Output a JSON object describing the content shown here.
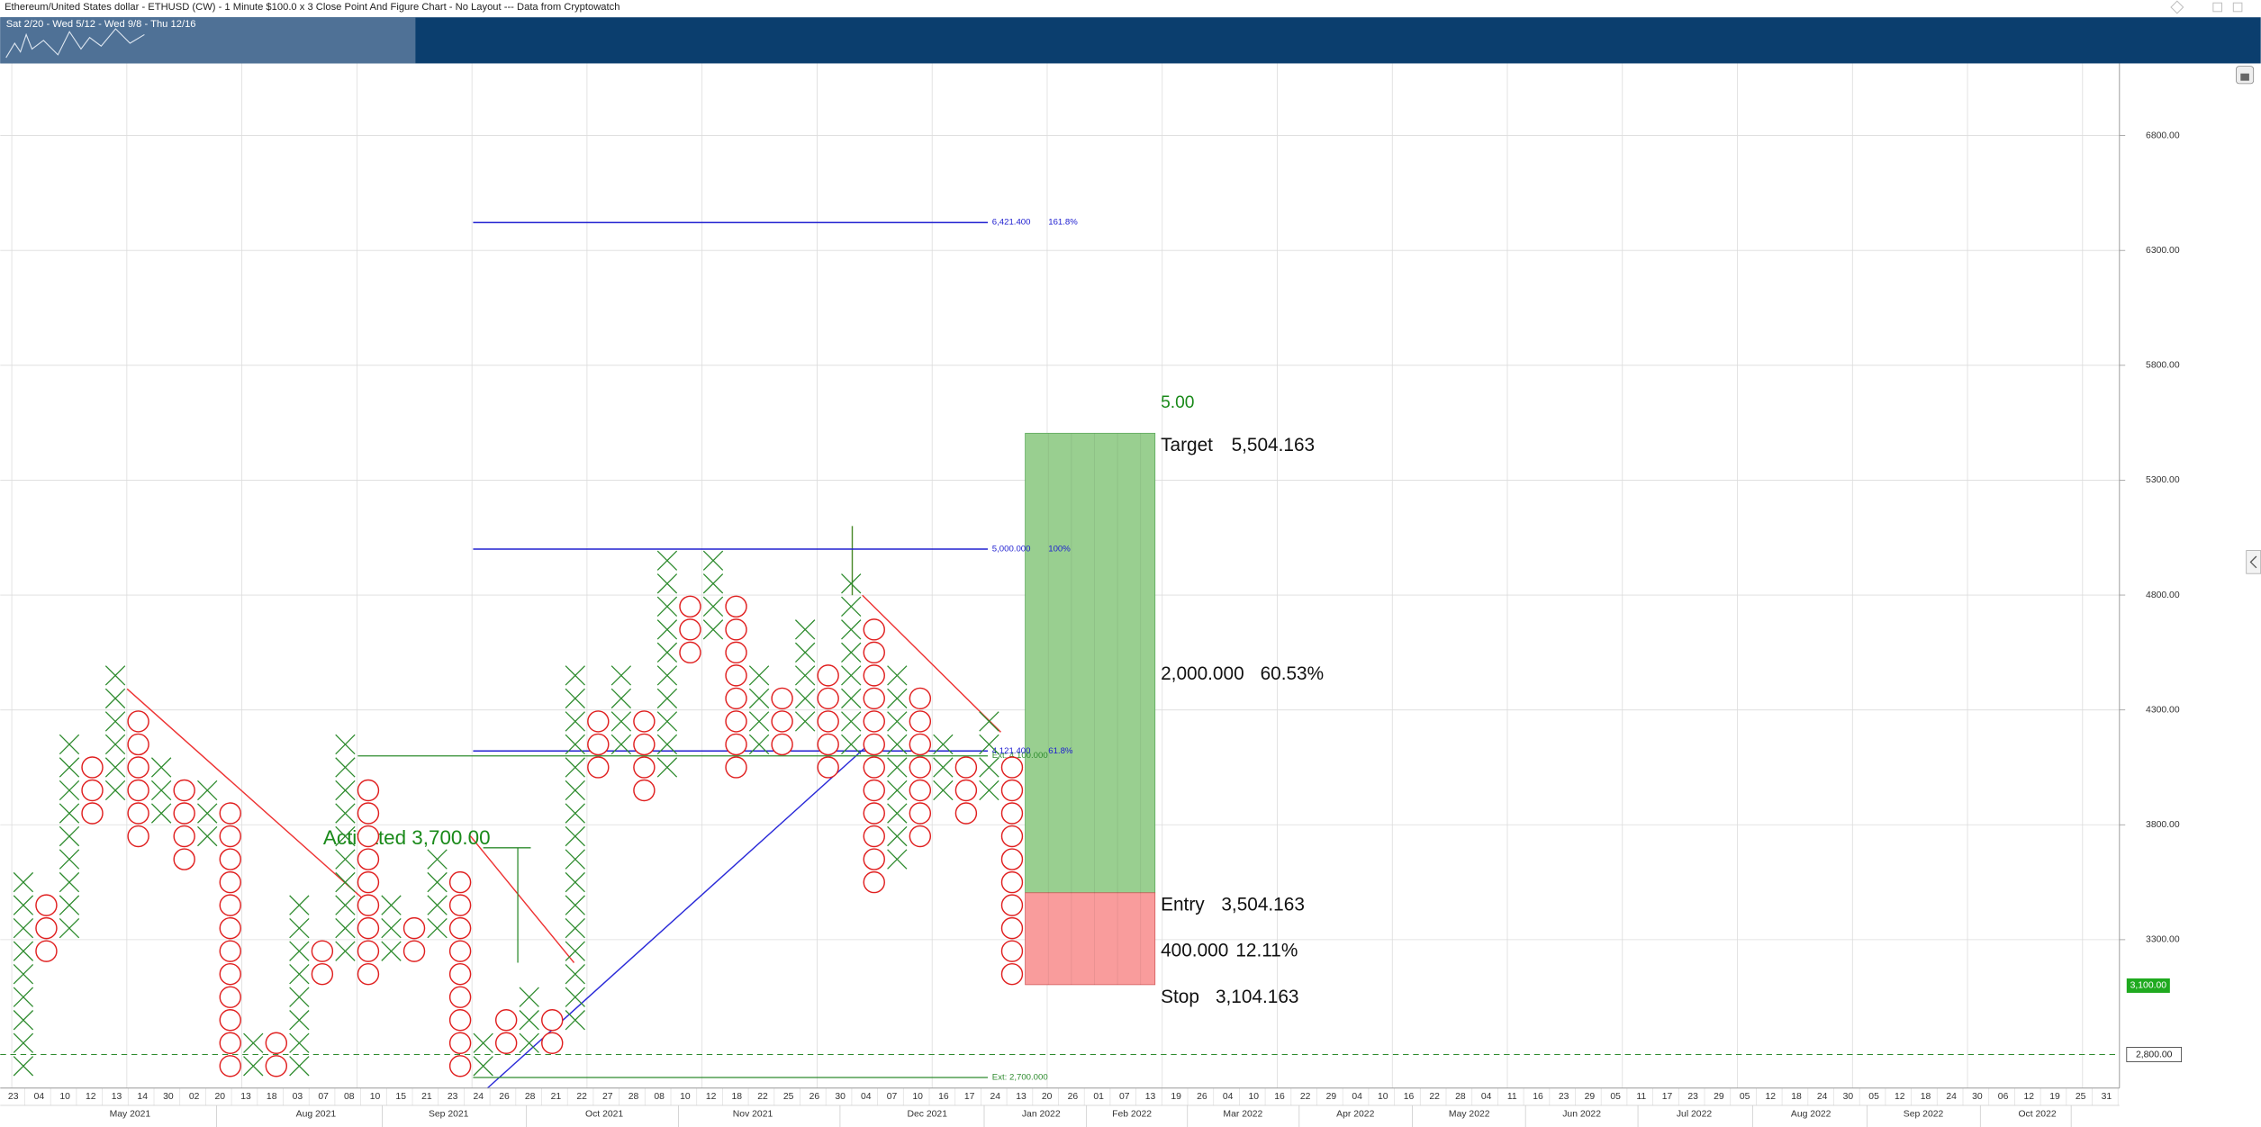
{
  "header": {
    "title": "Ethereum/United States dollar - ETHUSD (CW) - 1 Minute $100.0 x 3 Close Point And Figure Chart - No Layout --- Data from Cryptowatch",
    "overview_dates": "Sat 2/20 - Wed 5/12 - Wed 9/8 - Thu 12/16"
  },
  "chart_data": {
    "type": "point-and-figure",
    "box_size": 100,
    "x_color": "#2e8b2e",
    "o_color": "#e02020",
    "columns": [
      {
        "type": "X",
        "low": 2600,
        "high": 3500
      },
      {
        "type": "O",
        "low": 3200,
        "high": 3400
      },
      {
        "type": "X",
        "low": 3300,
        "high": 4100
      },
      {
        "type": "O",
        "low": 3800,
        "high": 4000
      },
      {
        "type": "X",
        "low": 3900,
        "high": 4400
      },
      {
        "type": "O",
        "low": 3700,
        "high": 4200
      },
      {
        "type": "X",
        "low": 3800,
        "high": 4000
      },
      {
        "type": "O",
        "low": 3600,
        "high": 3900
      },
      {
        "type": "X",
        "low": 3700,
        "high": 3900
      },
      {
        "type": "O",
        "low": 2700,
        "high": 3800
      },
      {
        "type": "X",
        "low": 2700,
        "high": 2800
      },
      {
        "type": "O",
        "low": 2700,
        "high": 2800
      },
      {
        "type": "X",
        "low": 2700,
        "high": 3400
      },
      {
        "type": "O",
        "low": 3100,
        "high": 3200
      },
      {
        "type": "X",
        "low": 3200,
        "high": 4100
      },
      {
        "type": "O",
        "low": 3100,
        "high": 3900
      },
      {
        "type": "X",
        "low": 3200,
        "high": 3400
      },
      {
        "type": "O",
        "low": 3200,
        "high": 3300
      },
      {
        "type": "X",
        "low": 3300,
        "high": 3600
      },
      {
        "type": "O",
        "low": 2700,
        "high": 3500
      },
      {
        "type": "X",
        "low": 2700,
        "high": 2800
      },
      {
        "type": "O",
        "low": 2800,
        "high": 2900
      },
      {
        "type": "X",
        "low": 2800,
        "high": 3000
      },
      {
        "type": "O",
        "low": 2800,
        "high": 2900
      },
      {
        "type": "X",
        "low": 2900,
        "high": 4400
      },
      {
        "type": "O",
        "low": 4000,
        "high": 4200
      },
      {
        "type": "X",
        "low": 4100,
        "high": 4400
      },
      {
        "type": "O",
        "low": 3900,
        "high": 4200
      },
      {
        "type": "X",
        "low": 4000,
        "high": 4900
      },
      {
        "type": "O",
        "low": 4500,
        "high": 4700
      },
      {
        "type": "X",
        "low": 4600,
        "high": 4900
      },
      {
        "type": "O",
        "low": 4000,
        "high": 4700
      },
      {
        "type": "X",
        "low": 4100,
        "high": 4400
      },
      {
        "type": "O",
        "low": 4100,
        "high": 4300
      },
      {
        "type": "X",
        "low": 4200,
        "high": 4600
      },
      {
        "type": "O",
        "low": 4000,
        "high": 4400
      },
      {
        "type": "X",
        "low": 4100,
        "high": 4800
      },
      {
        "type": "O",
        "low": 3500,
        "high": 4600
      },
      {
        "type": "X",
        "low": 3600,
        "high": 4400
      },
      {
        "type": "O",
        "low": 3700,
        "high": 4300
      },
      {
        "type": "X",
        "low": 3900,
        "high": 4100
      },
      {
        "type": "O",
        "low": 3800,
        "high": 4000
      },
      {
        "type": "X",
        "low": 3900,
        "high": 4200
      },
      {
        "type": "O",
        "low": 3100,
        "high": 4000
      }
    ],
    "ylim": [
      2654,
      7114
    ],
    "yticks": [
      {
        "value": 3300,
        "label": "3300.00"
      },
      {
        "value": 3800,
        "label": "3800.00"
      },
      {
        "value": 4300,
        "label": "4300.00"
      },
      {
        "value": 4800,
        "label": "4800.00"
      },
      {
        "value": 5300,
        "label": "5300.00"
      },
      {
        "value": 5800,
        "label": "5800.00"
      },
      {
        "value": 6300,
        "label": "6300.00"
      },
      {
        "value": 6800,
        "label": "6800.00"
      }
    ],
    "grid": true,
    "last_price": {
      "value": 3100,
      "label": "3,100.00",
      "color": "#1faa1f"
    },
    "marker": {
      "value": 2800,
      "label": "2,800.00",
      "color": "#2e8b2e"
    },
    "fib_levels": [
      {
        "value": 6421.4,
        "label": "6,421.400",
        "ratio": "161.8%"
      },
      {
        "value": 5000,
        "label": "5,000.000",
        "ratio": "100%"
      },
      {
        "value": 4121.4,
        "label": "4,121.400",
        "ratio": "61.8%"
      }
    ],
    "fib_color": "#2020d0",
    "extensions": [
      {
        "value": 4100,
        "label": "Ext: 4,100.000"
      },
      {
        "value": 2700,
        "label": "Ext: 2,700.000"
      }
    ],
    "ext_color": "#2e8b2e",
    "activation": {
      "value": 3700,
      "label": "Activated 3,700.00"
    },
    "trade": {
      "ratio": "5.00",
      "target": {
        "label": "Target",
        "value": 5504.163,
        "value_label": "5,504.163"
      },
      "entry": {
        "label": "Entry",
        "value": 3504.163,
        "value_label": "3,504.163"
      },
      "stop": {
        "label": "Stop",
        "value": 3104.163,
        "value_label": "3,104.163"
      },
      "reward": {
        "points": "2,000.000",
        "percent": "60.53%"
      },
      "risk": {
        "points": "400.000",
        "percent": "12.11%"
      },
      "reward_color": "#99cf90",
      "risk_color": "#f99c9c"
    },
    "date_labels": [
      "23",
      "04",
      "10",
      "12",
      "13",
      "14",
      "30",
      "02",
      "20",
      "13",
      "18",
      "03",
      "07",
      "08",
      "10",
      "15",
      "21",
      "23",
      "24",
      "26",
      "28",
      "21",
      "22",
      "27",
      "28",
      "08",
      "10",
      "12",
      "18",
      "22",
      "25",
      "26",
      "30",
      "04",
      "07",
      "10",
      "16",
      "17",
      "24",
      "13",
      "20",
      "26",
      "01",
      "07",
      "13",
      "19",
      "26",
      "04",
      "10",
      "16",
      "22",
      "29",
      "04",
      "10",
      "16",
      "22",
      "28",
      "04",
      "11",
      "16",
      "23",
      "29",
      "05",
      "11",
      "17",
      "23",
      "29",
      "05",
      "12",
      "18",
      "24",
      "30",
      "05",
      "12",
      "18",
      "24",
      "30",
      "06",
      "12",
      "19",
      "25",
      "31"
    ],
    "months": [
      "May 2021",
      "Aug 2021",
      "Sep 2021",
      "Oct 2021",
      "Nov 2021",
      "Dec 2021",
      "Jan 2022",
      "Feb 2022",
      "Mar 2022",
      "Apr 2022",
      "May 2022",
      "Jun 2022",
      "Jul 2022",
      "Aug 2022",
      "Sep 2022",
      "Oct 2022"
    ]
  }
}
